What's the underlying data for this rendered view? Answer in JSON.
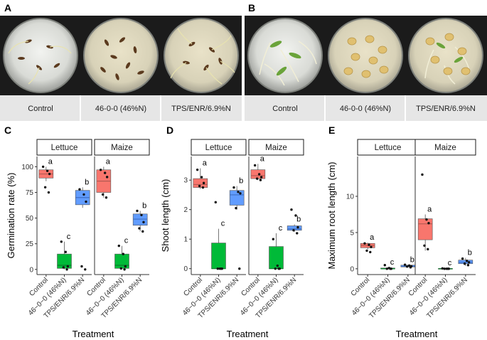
{
  "photos": {
    "A": {
      "label": "A",
      "captions": [
        "Control",
        "46-0-0 (46%N)",
        "TPS/ENR/6.9%N"
      ]
    },
    "B": {
      "label": "B",
      "captions": [
        "Control",
        "46-0-0 (46%N)",
        "TPS/ENR/6.9%N"
      ]
    }
  },
  "chart_data": [
    {
      "label": "C",
      "type": "box",
      "ylabel": "Germination rate (%)",
      "xlabel": "Treatment",
      "ylim": [
        -5,
        110
      ],
      "yticks": [
        0,
        25,
        50,
        75,
        100
      ],
      "categories": [
        "Control",
        "46−0−0 (46%N)",
        "TPS/ENR/6.9%N"
      ],
      "facets": [
        {
          "name": "Lettuce",
          "groups": [
            {
              "q1": 89,
              "median": 93,
              "q3": 97,
              "min": 86,
              "max": 100,
              "points": [
                100,
                96,
                93,
                80,
                75
              ],
              "letter": "a"
            },
            {
              "q1": 1,
              "median": 4,
              "q3": 15,
              "min": 0,
              "max": 27,
              "points": [
                27,
                17,
                3,
                2,
                0
              ],
              "letter": "c"
            },
            {
              "q1": 63,
              "median": 70,
              "q3": 77,
              "min": 60,
              "max": 80,
              "points": [
                78,
                73,
                66,
                3,
                0
              ],
              "letter": "b"
            }
          ]
        },
        {
          "name": "Maize",
          "groups": [
            {
              "q1": 75,
              "median": 86,
              "q3": 97,
              "min": 70,
              "max": 100,
              "points": [
                97,
                94,
                90,
                73,
                70
              ],
              "letter": "a"
            },
            {
              "q1": 1,
              "median": 4,
              "q3": 15,
              "min": 0,
              "max": 23,
              "points": [
                23,
                15,
                3,
                1,
                0
              ],
              "letter": "c"
            },
            {
              "q1": 43,
              "median": 49,
              "q3": 54,
              "min": 37,
              "max": 57,
              "points": [
                57,
                53,
                46,
                40,
                37
              ],
              "letter": "b"
            }
          ]
        }
      ]
    },
    {
      "label": "D",
      "type": "box",
      "ylabel": "Shoot length (cm)",
      "xlabel": "Treatment",
      "ylim": [
        -0.2,
        3.8
      ],
      "yticks": [
        0,
        1,
        2,
        3
      ],
      "categories": [
        "Control",
        "46−0−0 (46%N)",
        "TPS/ENR/6.9%N"
      ],
      "facets": [
        {
          "name": "Lettuce",
          "groups": [
            {
              "q1": 2.75,
              "median": 2.85,
              "q3": 3.05,
              "min": 2.7,
              "max": 3.4,
              "points": [
                3.35,
                3.1,
                2.9,
                2.8,
                2.75
              ],
              "letter": "a"
            },
            {
              "q1": 0.0,
              "median": 0.0,
              "q3": 0.87,
              "min": 0.0,
              "max": 1.35,
              "points": [
                2.25,
                0.0,
                0.0,
                0.0,
                0.0
              ],
              "letter": "c"
            },
            {
              "q1": 2.15,
              "median": 2.5,
              "q3": 2.65,
              "min": 2.0,
              "max": 2.8,
              "points": [
                2.75,
                2.6,
                2.55,
                2.05,
                0.0
              ],
              "letter": "b"
            }
          ]
        },
        {
          "name": "Maize",
          "groups": [
            {
              "q1": 3.05,
              "median": 3.15,
              "q3": 3.35,
              "min": 3.0,
              "max": 3.55,
              "points": [
                3.5,
                3.2,
                3.1,
                3.05,
                3.0
              ],
              "letter": "a"
            },
            {
              "q1": 0.0,
              "median": 0.0,
              "q3": 0.75,
              "min": 0.0,
              "max": 1.2,
              "points": [
                1.0,
                0.1,
                0.0,
                0.0,
                0.0
              ],
              "letter": "c"
            },
            {
              "q1": 1.3,
              "median": 1.35,
              "q3": 1.45,
              "min": 1.25,
              "max": 1.5,
              "points": [
                2.0,
                1.8,
                1.4,
                1.3,
                1.2
              ],
              "letter": "b"
            }
          ]
        }
      ]
    },
    {
      "label": "E",
      "type": "box",
      "ylabel": "Maximum root length (cm)",
      "xlabel": "Treatment",
      "ylim": [
        -0.8,
        15.5
      ],
      "yticks": [
        0,
        5,
        10
      ],
      "categories": [
        "Control",
        "46−0−0 (46%N)",
        "TPS/ENR/6.9%N"
      ],
      "facets": [
        {
          "name": "Lettuce",
          "groups": [
            {
              "q1": 2.9,
              "median": 3.2,
              "q3": 3.5,
              "min": 2.7,
              "max": 3.6,
              "points": [
                3.5,
                3.3,
                3.0,
                2.5,
                2.3
              ],
              "letter": "a"
            },
            {
              "q1": 0.0,
              "median": 0.0,
              "q3": 0.1,
              "min": 0.0,
              "max": 0.2,
              "points": [
                0.5,
                0.1,
                0.0,
                0.0,
                0.0
              ],
              "letter": "c"
            },
            {
              "q1": 0.25,
              "median": 0.35,
              "q3": 0.5,
              "min": 0.2,
              "max": 0.55,
              "points": [
                0.55,
                0.45,
                0.35,
                0.3,
                0.2
              ],
              "letter": "b"
            }
          ]
        },
        {
          "name": "Maize",
          "groups": [
            {
              "q1": 4.0,
              "median": 6.2,
              "q3": 6.9,
              "min": 2.5,
              "max": 7.5,
              "points": [
                13.0,
                6.8,
                6.3,
                3.2,
                2.7
              ],
              "letter": "a"
            },
            {
              "q1": 0.0,
              "median": 0.0,
              "q3": 0.05,
              "min": 0.0,
              "max": 0.1,
              "points": [
                0.05,
                0.0,
                0.0,
                0.0,
                0.0
              ],
              "letter": "c"
            },
            {
              "q1": 0.7,
              "median": 0.9,
              "q3": 1.2,
              "min": 0.4,
              "max": 1.5,
              "points": [
                1.4,
                1.1,
                0.9,
                0.7,
                0.5
              ],
              "letter": "b"
            }
          ]
        }
      ]
    }
  ],
  "colors": {
    "control": "#f8766d",
    "urea": "#00ba38",
    "tps": "#619cff",
    "strip_fill": "#ffffff",
    "caption_bg": "#e6e6e6"
  }
}
